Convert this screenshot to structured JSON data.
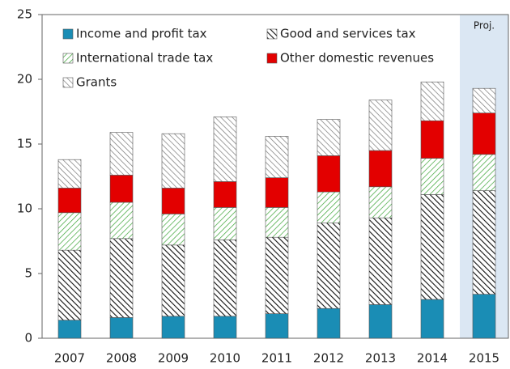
{
  "chart_data": {
    "type": "stacked_bar",
    "categories": [
      "2007",
      "2008",
      "2009",
      "2010",
      "2011",
      "2012",
      "2013",
      "2014",
      "2015"
    ],
    "series": [
      {
        "name": "Income and profit tax",
        "color": "#1a8db5",
        "hatch": false,
        "values": [
          1.4,
          1.6,
          1.7,
          1.7,
          1.9,
          2.3,
          2.6,
          3.0,
          3.4
        ]
      },
      {
        "name": "Good and services tax",
        "color": "#111111",
        "hatch": true,
        "values": [
          5.4,
          6.1,
          5.5,
          5.9,
          5.9,
          6.6,
          6.7,
          8.1,
          8.0
        ]
      },
      {
        "name": "International trade tax",
        "color": "#3aa335",
        "hatch": true,
        "values": [
          2.9,
          2.8,
          2.4,
          2.5,
          2.3,
          2.4,
          2.4,
          2.8,
          2.8
        ]
      },
      {
        "name": "Other domestic revenues",
        "color": "#e30000",
        "hatch": false,
        "values": [
          1.9,
          2.1,
          2.0,
          2.0,
          2.3,
          2.8,
          2.8,
          2.9,
          3.2
        ]
      },
      {
        "name": "Grants",
        "color": "#777777",
        "hatch": true,
        "values": [
          2.2,
          3.3,
          4.2,
          5.0,
          3.2,
          2.8,
          3.9,
          3.0,
          1.9
        ]
      }
    ],
    "annotation": "Proj.",
    "ylim": [
      0,
      25
    ],
    "yticks": [
      0,
      5,
      10,
      15,
      20,
      25
    ]
  }
}
